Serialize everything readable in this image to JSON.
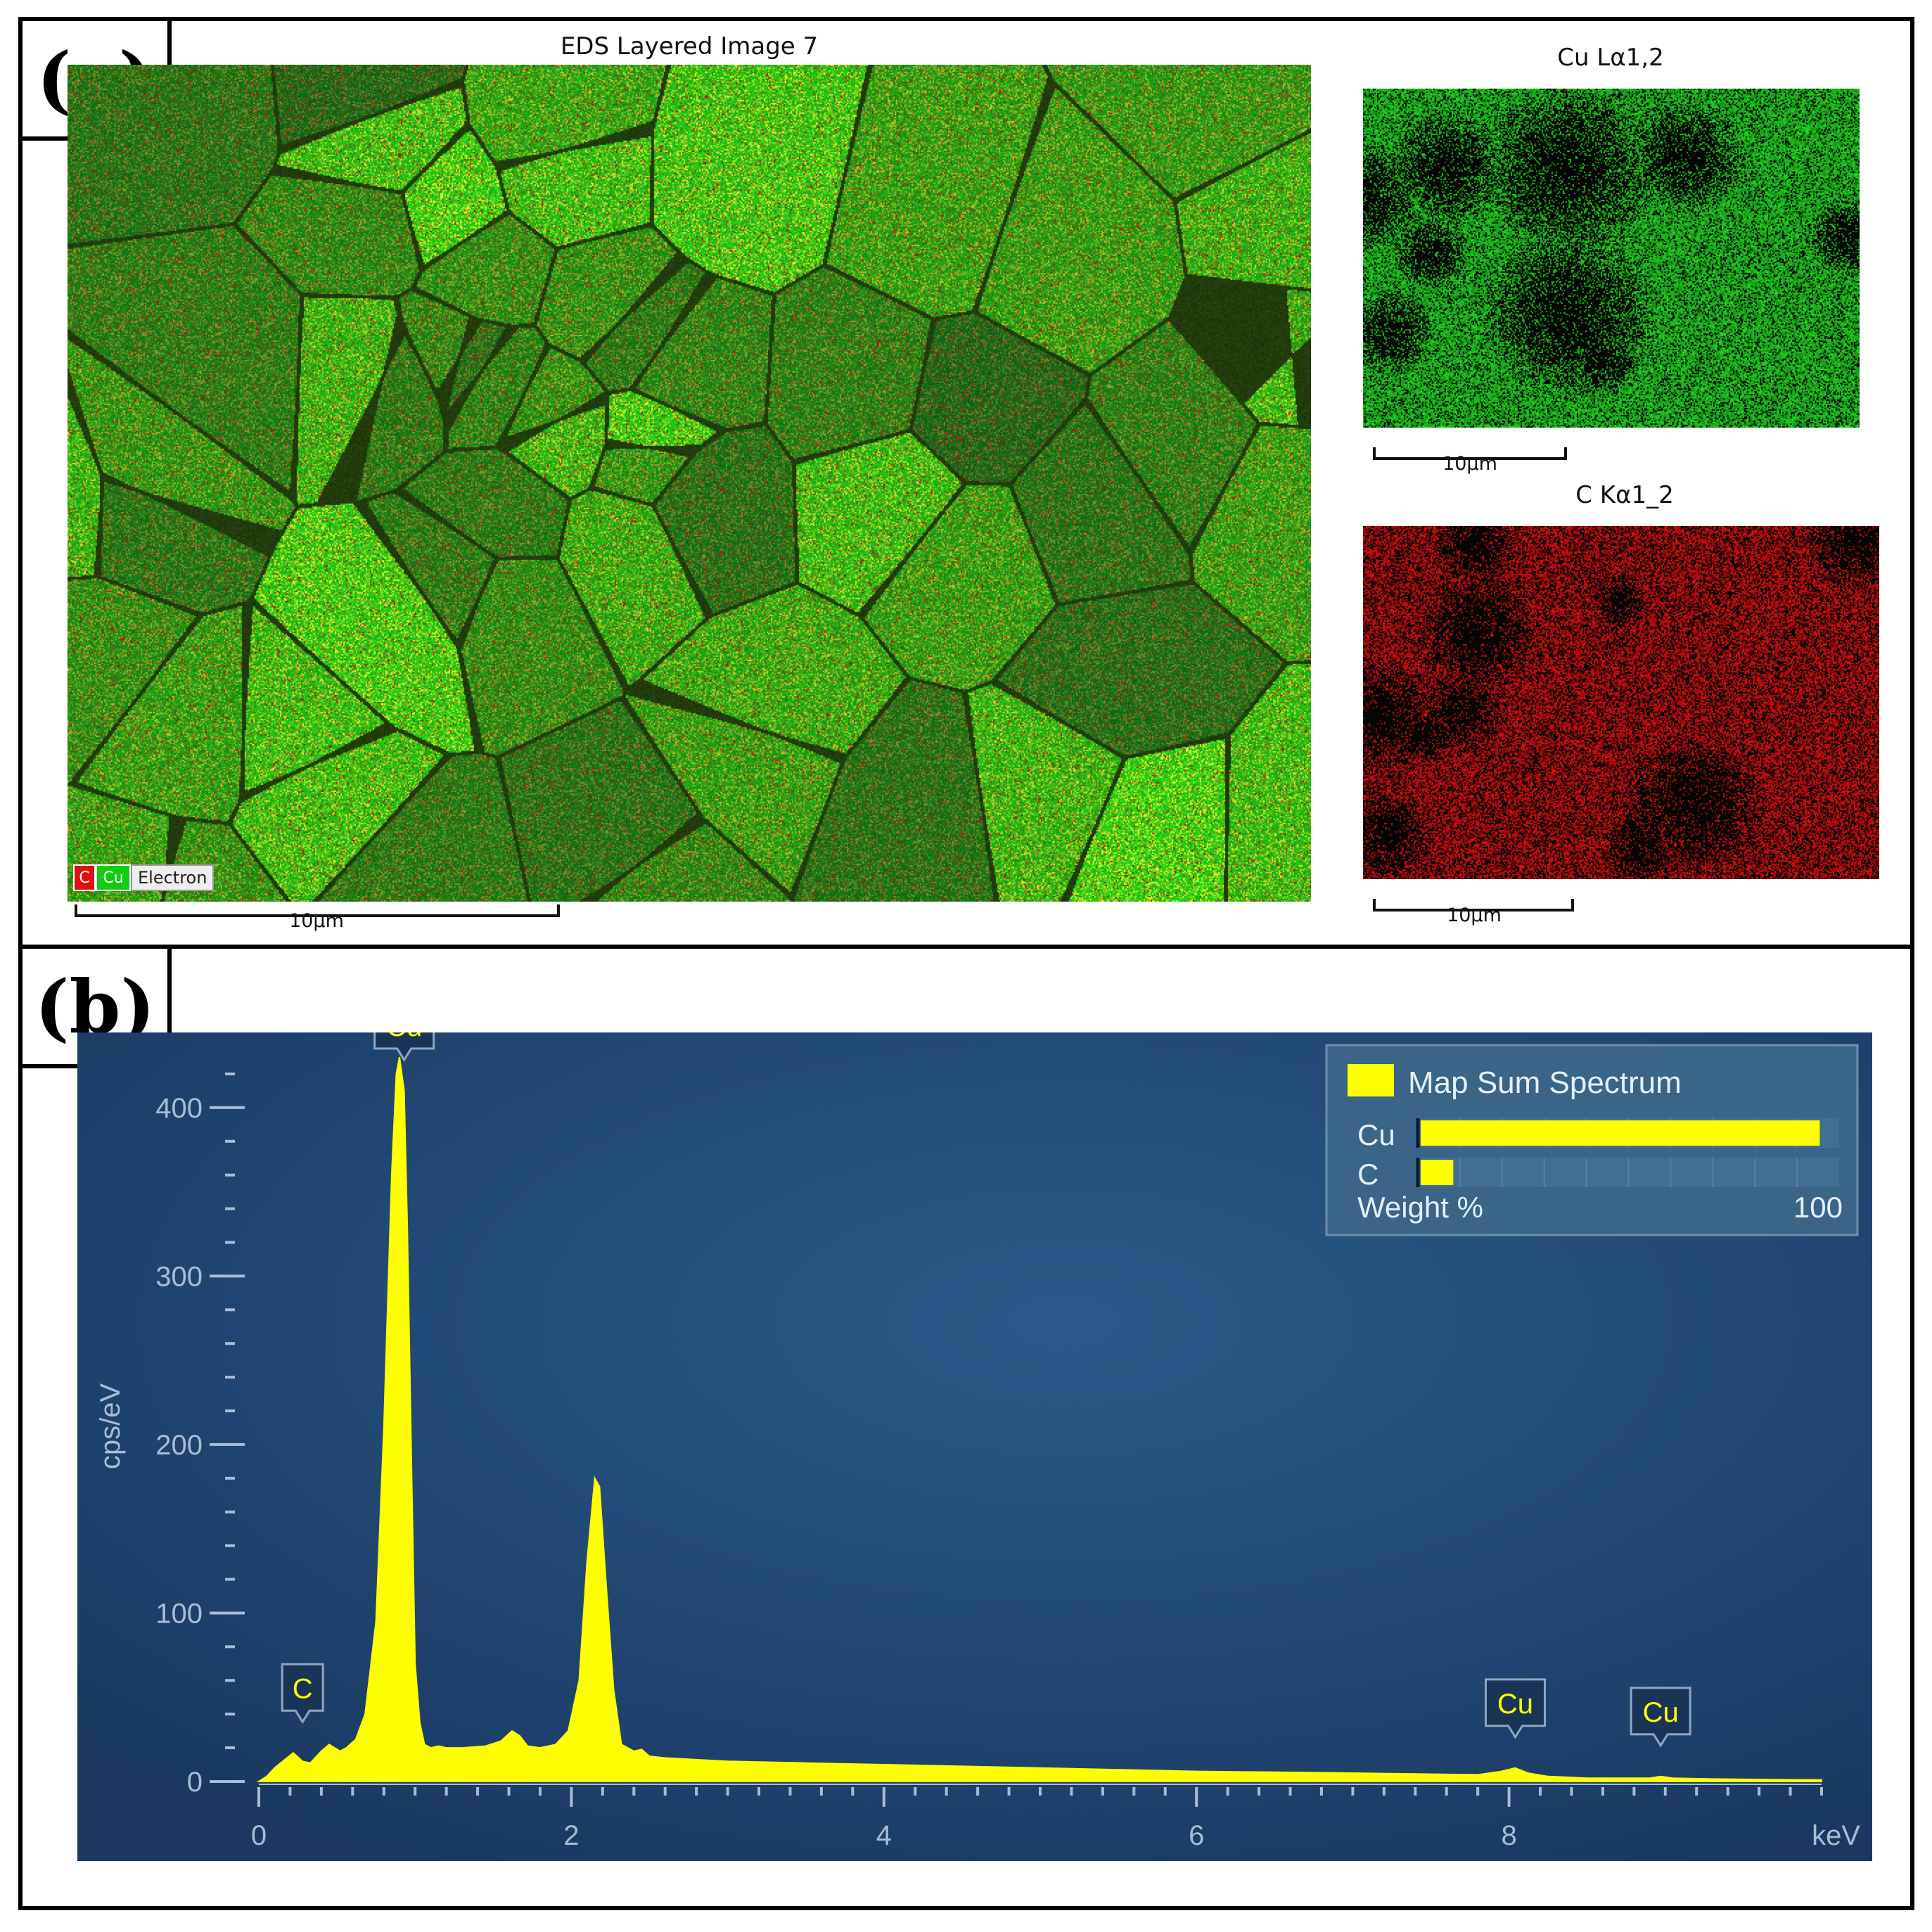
{
  "panel_a": {
    "label": "(a)",
    "layered_title": "EDS Layered Image 7",
    "layered_scale": "10µm",
    "legend": {
      "c": "C",
      "cu": "Cu",
      "electron": "Electron"
    },
    "cu_map_title": "Cu Lα1,2",
    "cu_map_scale": "10µm",
    "c_map_title": "C Kα1_2",
    "c_map_scale": "10µm",
    "colors": {
      "cu": "#22dd22",
      "c": "#e01010"
    }
  },
  "panel_b": {
    "label": "(b)"
  },
  "chart_data": {
    "type": "area",
    "title": "",
    "xlabel": "keV",
    "ylabel": "cps/eV",
    "xlim": [
      0,
      10
    ],
    "ylim": [
      0,
      430
    ],
    "x_ticks": [
      0,
      2,
      4,
      6,
      8
    ],
    "y_ticks": [
      0,
      100,
      200,
      300,
      400
    ],
    "background_color": "#1e4068",
    "series_color": "#ffff00",
    "series": [
      {
        "name": "Map Sum Spectrum",
        "x": [
          0.0,
          0.05,
          0.1,
          0.18,
          0.22,
          0.28,
          0.33,
          0.4,
          0.45,
          0.52,
          0.56,
          0.62,
          0.68,
          0.75,
          0.8,
          0.85,
          0.88,
          0.9,
          0.93,
          0.95,
          0.98,
          1.0,
          1.03,
          1.06,
          1.1,
          1.15,
          1.2,
          1.3,
          1.45,
          1.55,
          1.62,
          1.67,
          1.72,
          1.8,
          1.9,
          1.98,
          2.05,
          2.1,
          2.15,
          2.18,
          2.22,
          2.27,
          2.32,
          2.4,
          2.45,
          2.5,
          2.6,
          2.8,
          3.0,
          3.5,
          4.0,
          5.0,
          6.0,
          7.0,
          7.8,
          7.95,
          8.04,
          8.12,
          8.25,
          8.5,
          8.9,
          8.97,
          9.05,
          9.3,
          9.8,
          10.0
        ],
        "y": [
          0,
          3,
          8,
          14,
          17,
          12,
          11,
          18,
          22,
          18,
          20,
          25,
          40,
          95,
          210,
          360,
          420,
          440,
          410,
          330,
          170,
          70,
          35,
          22,
          20,
          21,
          20,
          20,
          21,
          24,
          30,
          27,
          21,
          20,
          22,
          30,
          60,
          130,
          180,
          175,
          120,
          55,
          22,
          18,
          19,
          15,
          14,
          13,
          12,
          11,
          10,
          8,
          6,
          5,
          4,
          6,
          8,
          5,
          3,
          2,
          2,
          3,
          2,
          1.5,
          1,
          1
        ]
      }
    ],
    "peak_labels": [
      {
        "label": "C",
        "x": 0.28,
        "y": 17
      },
      {
        "label": "Cu",
        "x": 0.93,
        "y": 410
      },
      {
        "label": "Cu",
        "x": 8.04,
        "y": 8
      },
      {
        "label": "Cu",
        "x": 8.97,
        "y": 3
      }
    ],
    "legend": {
      "position": "top-right",
      "title": "Map Sum Spectrum",
      "bars": [
        {
          "element": "Cu",
          "weight_percent": 98
        },
        {
          "element": "C",
          "weight_percent": 8
        }
      ],
      "axis_label": "Weight %",
      "axis_max": "100"
    }
  }
}
